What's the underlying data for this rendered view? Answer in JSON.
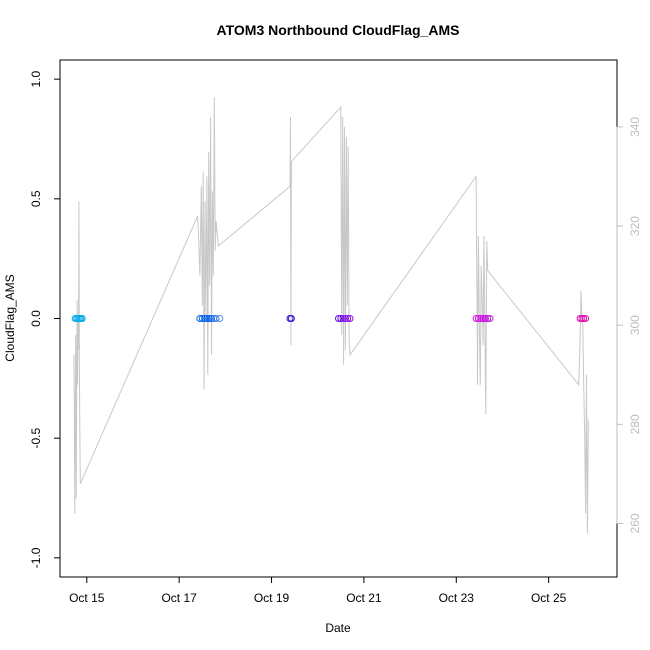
{
  "chart_data": {
    "type": "scatter",
    "title": "ATOM3 Northbound CloudFlag_AMS",
    "xlabel": "Date",
    "ylabel": "CloudFlag_AMS",
    "x_unit": "day of October",
    "xlim": [
      14.42,
      26.48
    ],
    "ylim": [
      -1.08,
      1.08
    ],
    "y2lim": [
      249.2,
      353.5
    ],
    "x_ticks": [
      15,
      17,
      19,
      21,
      23,
      25
    ],
    "x_tick_labels": [
      "Oct 15",
      "Oct 17",
      "Oct 19",
      "Oct 21",
      "Oct 23",
      "Oct 25"
    ],
    "y_ticks": [
      -1.0,
      -0.5,
      0.0,
      0.5,
      1.0
    ],
    "y_tick_labels": [
      "-1.0",
      "-0.5",
      "0.0",
      "0.5",
      "1.0"
    ],
    "y2_ticks": [
      260,
      280,
      300,
      320,
      340
    ],
    "y2_tick_labels": [
      "260",
      "280",
      "300",
      "320",
      "340"
    ],
    "grid": false,
    "series": [
      {
        "kind": "points",
        "axis": "left",
        "points": [
          {
            "x": 14.75,
            "y": 0,
            "color": "#00b2e8"
          },
          {
            "x": 14.78,
            "y": 0,
            "color": "#00b2e8"
          },
          {
            "x": 14.81,
            "y": 0,
            "color": "#00aee8"
          },
          {
            "x": 14.84,
            "y": 0,
            "color": "#00abe8"
          },
          {
            "x": 14.87,
            "y": 0,
            "color": "#00a8e8"
          },
          {
            "x": 14.9,
            "y": 0,
            "color": "#00a4e8"
          },
          {
            "x": 17.45,
            "y": 0,
            "color": "#0066e8"
          },
          {
            "x": 17.5,
            "y": 0,
            "color": "#0064e8"
          },
          {
            "x": 17.55,
            "y": 0,
            "color": "#0062e8"
          },
          {
            "x": 17.6,
            "y": 0,
            "color": "#005fe8"
          },
          {
            "x": 17.65,
            "y": 0,
            "color": "#005ce8"
          },
          {
            "x": 17.7,
            "y": 0,
            "color": "#0059e8"
          },
          {
            "x": 17.75,
            "y": 0,
            "color": "#2a6ee8"
          },
          {
            "x": 17.8,
            "y": 0,
            "color": "#3a80e8"
          },
          {
            "x": 17.88,
            "y": 0,
            "color": "#5090e8"
          },
          {
            "x": 19.4,
            "y": 0,
            "color": "#2a10e0"
          },
          {
            "x": 19.43,
            "y": 0,
            "color": "#3a10e0"
          },
          {
            "x": 20.45,
            "y": 0,
            "color": "#6010e0"
          },
          {
            "x": 20.5,
            "y": 0,
            "color": "#6a10e0"
          },
          {
            "x": 20.55,
            "y": 0,
            "color": "#7410e0"
          },
          {
            "x": 20.6,
            "y": 0,
            "color": "#7e10e0"
          },
          {
            "x": 20.65,
            "y": 0,
            "color": "#8810e0"
          },
          {
            "x": 20.7,
            "y": 0,
            "color": "#9210e0"
          },
          {
            "x": 23.43,
            "y": 0,
            "color": "#e010e0"
          },
          {
            "x": 23.48,
            "y": 0,
            "color": "#d810e0"
          },
          {
            "x": 23.53,
            "y": 0,
            "color": "#d010e0"
          },
          {
            "x": 23.58,
            "y": 0,
            "color": "#c810e0"
          },
          {
            "x": 23.63,
            "y": 0,
            "color": "#c010e0"
          },
          {
            "x": 23.68,
            "y": 0,
            "color": "#b810e0"
          },
          {
            "x": 23.73,
            "y": 0,
            "color": "#c020d8"
          },
          {
            "x": 25.68,
            "y": 0,
            "color": "#e010b8"
          },
          {
            "x": 25.72,
            "y": 0,
            "color": "#e010b4"
          },
          {
            "x": 25.76,
            "y": 0,
            "color": "#e010b0"
          },
          {
            "x": 25.8,
            "y": 0,
            "color": "#e010ac"
          }
        ]
      },
      {
        "kind": "line",
        "axis": "right",
        "color": "#c8c8c8",
        "points": [
          [
            14.72,
            294
          ],
          [
            14.73,
            285
          ],
          [
            14.74,
            262
          ],
          [
            14.75,
            280
          ],
          [
            14.76,
            298
          ],
          [
            14.77,
            265
          ],
          [
            14.79,
            305
          ],
          [
            14.8,
            288
          ],
          [
            14.81,
            302
          ],
          [
            14.82,
            295
          ],
          [
            14.83,
            325
          ],
          [
            14.84,
            290
          ],
          [
            14.86,
            268
          ],
          [
            17.4,
            322
          ],
          [
            17.42,
            318
          ],
          [
            17.45,
            310
          ],
          [
            17.48,
            328
          ],
          [
            17.5,
            304
          ],
          [
            17.52,
            331
          ],
          [
            17.54,
            287
          ],
          [
            17.56,
            325
          ],
          [
            17.58,
            302
          ],
          [
            17.6,
            330
          ],
          [
            17.62,
            290
          ],
          [
            17.64,
            335
          ],
          [
            17.66,
            308
          ],
          [
            17.68,
            342
          ],
          [
            17.7,
            294
          ],
          [
            17.72,
            327
          ],
          [
            17.74,
            310
          ],
          [
            17.76,
            346
          ],
          [
            17.78,
            315
          ],
          [
            17.8,
            321
          ],
          [
            17.85,
            316
          ],
          [
            19.4,
            328
          ],
          [
            19.41,
            342
          ],
          [
            19.42,
            296
          ],
          [
            19.43,
            333
          ],
          [
            20.5,
            344
          ],
          [
            20.52,
            298
          ],
          [
            20.54,
            342
          ],
          [
            20.56,
            292
          ],
          [
            20.58,
            340
          ],
          [
            20.6,
            295
          ],
          [
            20.62,
            338
          ],
          [
            20.64,
            304
          ],
          [
            20.66,
            336
          ],
          [
            20.68,
            297
          ],
          [
            20.7,
            294
          ],
          [
            23.43,
            330
          ],
          [
            23.44,
            314
          ],
          [
            23.45,
            304
          ],
          [
            23.46,
            288
          ],
          [
            23.48,
            318
          ],
          [
            23.5,
            299
          ],
          [
            23.52,
            288
          ],
          [
            23.54,
            312
          ],
          [
            23.56,
            305
          ],
          [
            23.58,
            296
          ],
          [
            23.6,
            318
          ],
          [
            23.62,
            300
          ],
          [
            23.64,
            282
          ],
          [
            23.66,
            317
          ],
          [
            23.68,
            311
          ],
          [
            25.65,
            288
          ],
          [
            25.68,
            297
          ],
          [
            25.7,
            307
          ],
          [
            25.72,
            302
          ],
          [
            25.74,
            300
          ],
          [
            25.76,
            288
          ],
          [
            25.78,
            278
          ],
          [
            25.8,
            262
          ],
          [
            25.82,
            290
          ],
          [
            25.84,
            258
          ],
          [
            25.86,
            281
          ]
        ]
      }
    ]
  }
}
